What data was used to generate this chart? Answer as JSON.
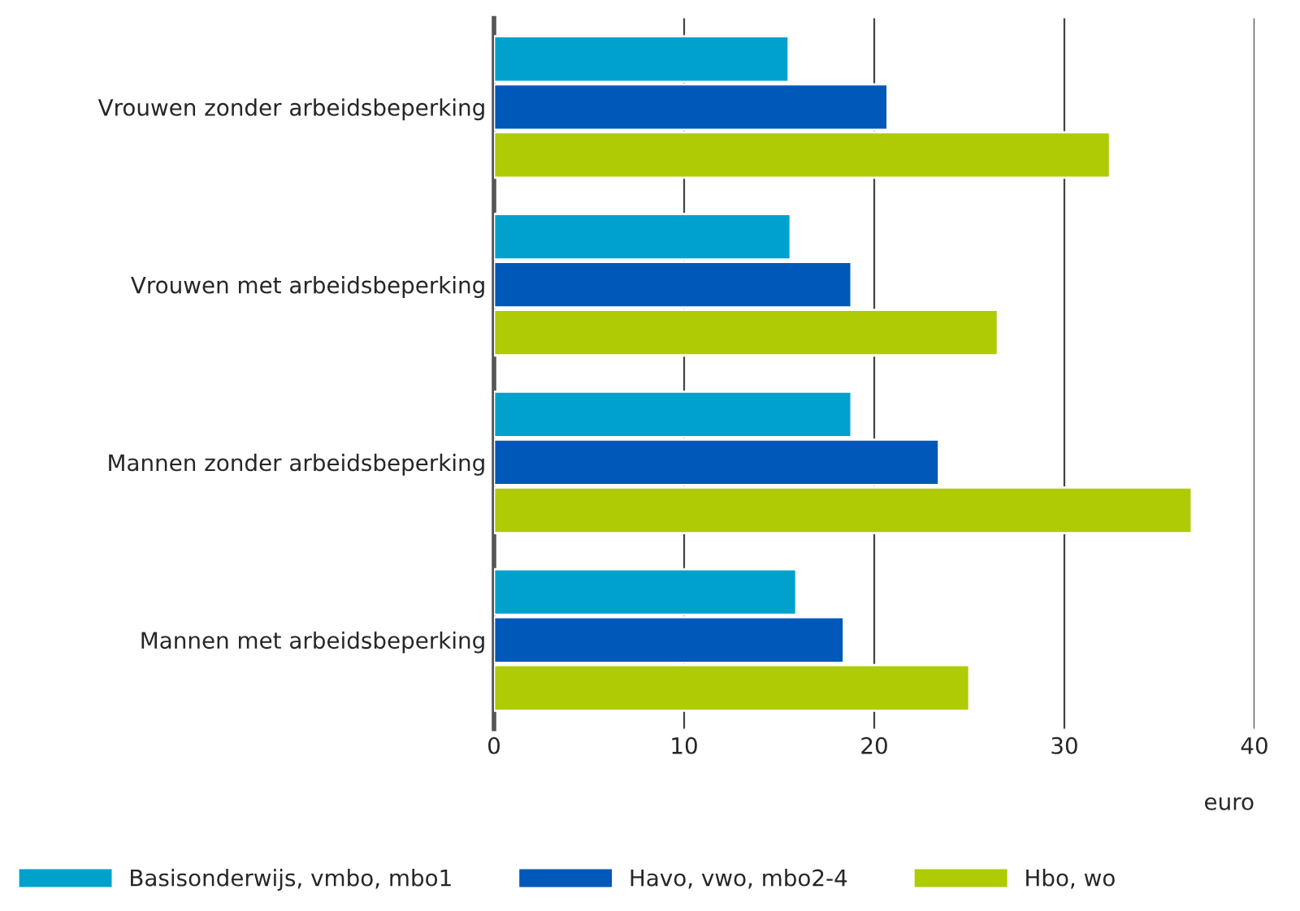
{
  "chart_data": {
    "type": "bar",
    "orientation": "horizontal",
    "xlabel": "euro",
    "categories": [
      "Vrouwen zonder arbeidsbeperking",
      "Vrouwen met arbeidsbeperking",
      "Mannen zonder arbeidsbeperking",
      "Mannen met arbeidsbeperking"
    ],
    "series": [
      {
        "name": "Basisonderwijs, vmbo, mbo1",
        "color": "#00a1cd",
        "values": [
          15.5,
          15.6,
          18.8,
          15.9
        ]
      },
      {
        "name": "Havo, vwo, mbo2-4",
        "color": "#0058b8",
        "values": [
          20.7,
          18.8,
          23.4,
          18.4
        ]
      },
      {
        "name": "Hbo, wo",
        "color": "#afcb05",
        "values": [
          32.4,
          26.5,
          36.7,
          25.0
        ]
      }
    ],
    "xlim": [
      0,
      40
    ],
    "xticks": [
      0,
      10,
      20,
      30,
      40
    ],
    "grid": "x",
    "legend": "bottom left"
  }
}
